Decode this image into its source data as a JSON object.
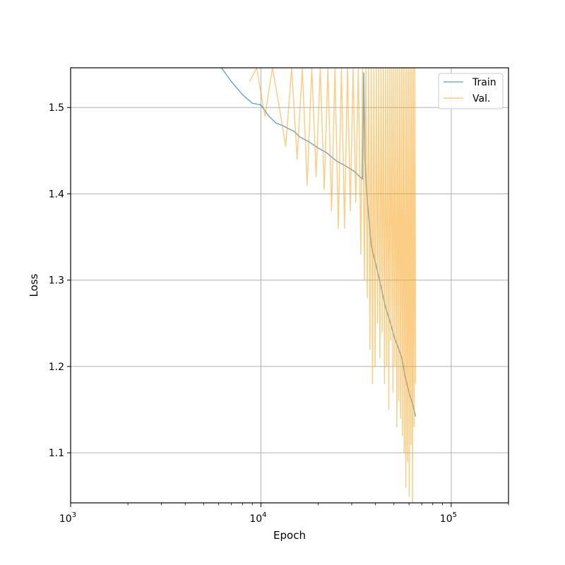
{
  "chart_data": {
    "type": "line",
    "title": "",
    "xlabel": "Epoch",
    "ylabel": "Loss",
    "xscale": "log",
    "xlim": [
      1000,
      200000
    ],
    "ylim": [
      1.042,
      1.546
    ],
    "grid": true,
    "legend_position": "top-right",
    "x_ticks": [
      {
        "value": 1000,
        "base": "10",
        "exp": "3"
      },
      {
        "value": 10000,
        "base": "10",
        "exp": "4"
      },
      {
        "value": 100000,
        "base": "10",
        "exp": "5"
      }
    ],
    "y_ticks": [
      {
        "value": 1.1,
        "label": "1.1"
      },
      {
        "value": 1.2,
        "label": "1.2"
      },
      {
        "value": 1.3,
        "label": "1.3"
      },
      {
        "value": 1.4,
        "label": "1.4"
      },
      {
        "value": 1.5,
        "label": "1.5"
      }
    ],
    "series": [
      {
        "name": "Train",
        "color": "#1f77b4",
        "x": [
          6200,
          7000,
          8000,
          9000,
          10000,
          11000,
          12000,
          13000,
          15000,
          16000,
          18000,
          20000,
          22000,
          25000,
          28000,
          31000,
          33000,
          34200,
          34700,
          35200,
          36000,
          37000,
          38000,
          40000,
          42000,
          45000,
          48000,
          50000,
          53000,
          55000,
          57000,
          60000,
          63000,
          65000
        ],
        "y": [
          1.546,
          1.53,
          1.515,
          1.505,
          1.503,
          1.49,
          1.482,
          1.479,
          1.472,
          1.466,
          1.46,
          1.453,
          1.448,
          1.438,
          1.432,
          1.426,
          1.42,
          1.417,
          1.54,
          1.44,
          1.4,
          1.37,
          1.34,
          1.32,
          1.3,
          1.27,
          1.25,
          1.235,
          1.22,
          1.21,
          1.19,
          1.17,
          1.155,
          1.142
        ]
      },
      {
        "name": "Val.",
        "color": "#f5a623",
        "x": [
          8700,
          9500,
          10500,
          11500,
          12500,
          13500,
          14500,
          15500,
          16500,
          17500,
          18500,
          19500,
          20500,
          21500,
          22500,
          23500,
          24500,
          25500,
          26500,
          27500,
          28500,
          29500,
          30500,
          31500,
          32500,
          33500,
          34200,
          35000,
          35600,
          36200,
          36800,
          37400,
          38000,
          38600,
          39200,
          39800,
          40400,
          41000,
          41600,
          42200,
          42800,
          43400,
          44000,
          44600,
          45200,
          45800,
          46400,
          47000,
          47600,
          48200,
          48800,
          49400,
          50000,
          50600,
          51200,
          51800,
          52400,
          53000,
          53600,
          54200,
          54800,
          55400,
          56000,
          56600,
          57200,
          57800,
          58400,
          59000,
          59600,
          60200,
          60800,
          61400,
          62000,
          62600,
          63200,
          63800,
          64400,
          65000
        ],
        "y": [
          1.53,
          1.546,
          1.49,
          1.546,
          1.5,
          1.455,
          1.546,
          1.44,
          1.546,
          1.41,
          1.546,
          1.42,
          1.546,
          1.405,
          1.546,
          1.38,
          1.546,
          1.36,
          1.546,
          1.36,
          1.546,
          1.38,
          1.546,
          1.39,
          1.546,
          1.33,
          1.546,
          1.3,
          1.546,
          1.28,
          1.546,
          1.22,
          1.546,
          1.18,
          1.546,
          1.2,
          1.546,
          1.25,
          1.546,
          1.21,
          1.546,
          1.24,
          1.546,
          1.18,
          1.546,
          1.2,
          1.546,
          1.15,
          1.546,
          1.23,
          1.546,
          1.17,
          1.546,
          1.2,
          1.546,
          1.13,
          1.546,
          1.16,
          1.546,
          1.14,
          1.546,
          1.12,
          1.546,
          1.1,
          1.546,
          1.06,
          1.546,
          1.09,
          1.546,
          1.05,
          1.546,
          1.11,
          1.546,
          1.042,
          1.546,
          1.13,
          1.546,
          1.18
        ]
      }
    ]
  }
}
